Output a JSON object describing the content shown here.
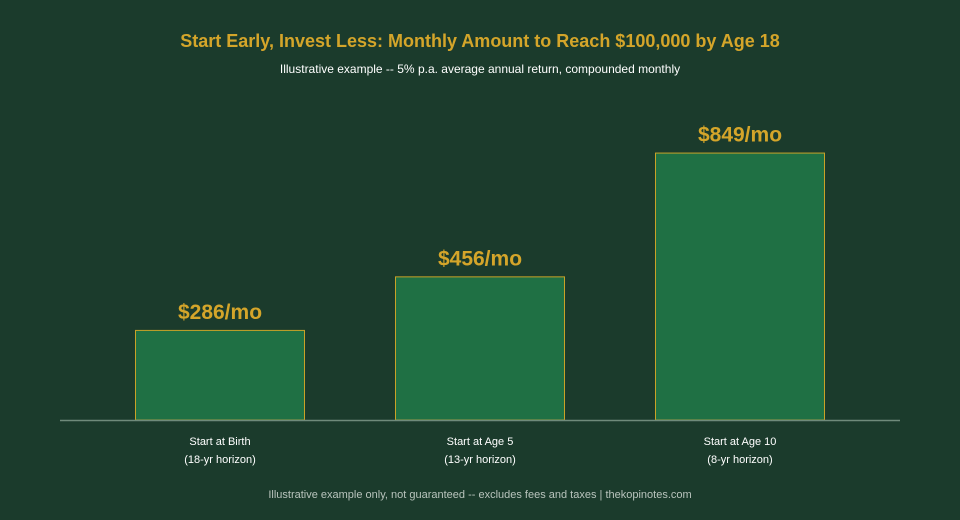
{
  "chart_data": {
    "type": "bar",
    "title": "Start Early, Invest Less: Monthly Amount to Reach $100,000 by Age 18",
    "subtitle": "Illustrative example -- 5% p.a. average annual return, compounded monthly",
    "categories": [
      {
        "line1": "Start at Birth",
        "line2": "(18-yr horizon)"
      },
      {
        "line1": "Start at Age 5",
        "line2": "(13-yr horizon)"
      },
      {
        "line1": "Start at Age 10",
        "line2": "(8-yr horizon)"
      }
    ],
    "values": [
      286,
      456,
      849
    ],
    "value_labels": [
      "$286/mo",
      "$456/mo",
      "$849/mo"
    ],
    "xlabel": "",
    "ylabel": "",
    "ylim": [
      0,
      1000
    ],
    "grid": false,
    "legend": "none",
    "footer": "Illustrative example only, not guaranteed -- excludes fees and taxes | thekopinotes.com",
    "colors": {
      "background": "#1b3b2c",
      "bar_fill": "#1f7044",
      "bar_edge": "#c9a227",
      "accent": "#d4a52a",
      "text": "#ffffff",
      "muted": "#b9c4bd",
      "axis": "#6f8a7b"
    }
  }
}
